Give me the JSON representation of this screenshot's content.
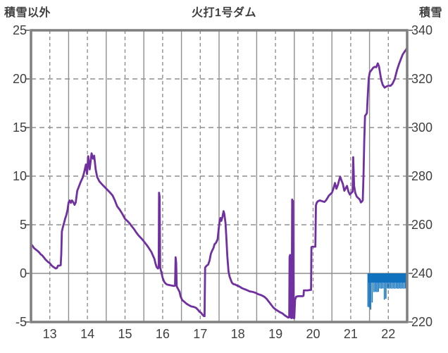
{
  "header": {
    "left_axis_title": "積雪以外",
    "title": "火打1号ダム",
    "right_axis_title": "積雪"
  },
  "colors": {
    "line": "#7030A0",
    "bar": "#1172BE",
    "grid": "#8f8f8f",
    "frame": "#7f7f7f",
    "text": "#404040"
  },
  "chart_data": {
    "type": "line",
    "title": "火打1号ダム",
    "x_axis": {
      "range": [
        12.5,
        22.5
      ],
      "tick_labels": [
        "13",
        "14",
        "15",
        "16",
        "17",
        "18",
        "19",
        "20",
        "21",
        "22"
      ],
      "tick_positions": [
        13,
        14,
        15,
        16,
        17,
        18,
        19,
        20,
        21,
        22
      ],
      "dashed_gridlines_at_labels": true,
      "solid_gridlines": [
        13.5,
        14.5,
        15.5,
        16.5,
        17.5,
        18.5,
        19.5,
        20.5,
        21.5
      ]
    },
    "left_axis": {
      "title": "積雪以外",
      "range": [
        -5,
        25
      ],
      "ticks": [
        25,
        20,
        15,
        10,
        5,
        0,
        -5
      ],
      "dashed_gridlines": [
        20,
        15,
        10,
        5
      ],
      "solid_zero_line": 0
    },
    "right_axis": {
      "title": "積雪",
      "range": [
        220,
        340
      ],
      "ticks": [
        340,
        320,
        300,
        280,
        260,
        240,
        220
      ]
    },
    "series": [
      {
        "name": "積雪以外",
        "type": "line",
        "axis": "left",
        "color": "#7030A0",
        "points": [
          [
            12.5,
            3.0
          ],
          [
            12.54,
            2.85
          ],
          [
            12.58,
            2.6
          ],
          [
            12.63,
            2.45
          ],
          [
            12.68,
            2.3
          ],
          [
            12.72,
            2.15
          ],
          [
            12.76,
            1.95
          ],
          [
            12.8,
            1.85
          ],
          [
            12.84,
            1.65
          ],
          [
            12.88,
            1.45
          ],
          [
            12.92,
            1.3
          ],
          [
            12.96,
            1.15
          ],
          [
            13.0,
            1.05
          ],
          [
            13.04,
            0.85
          ],
          [
            13.08,
            0.7
          ],
          [
            13.12,
            0.6
          ],
          [
            13.16,
            0.5
          ],
          [
            13.19,
            0.55
          ],
          [
            13.22,
            0.8
          ],
          [
            13.26,
            0.8
          ],
          [
            13.29,
            0.85
          ],
          [
            13.305,
            2.0
          ],
          [
            13.32,
            4.3
          ],
          [
            13.35,
            4.8
          ],
          [
            13.38,
            5.2
          ],
          [
            13.41,
            5.65
          ],
          [
            13.44,
            6.0
          ],
          [
            13.47,
            6.5
          ],
          [
            13.5,
            7.3
          ],
          [
            13.53,
            7.5
          ],
          [
            13.56,
            7.25
          ],
          [
            13.59,
            7.5
          ],
          [
            13.62,
            7.35
          ],
          [
            13.66,
            7.05
          ],
          [
            13.69,
            7.3
          ],
          [
            13.73,
            8.5
          ],
          [
            13.78,
            9.0
          ],
          [
            13.82,
            9.4
          ],
          [
            13.88,
            9.9
          ],
          [
            13.92,
            10.5
          ],
          [
            13.96,
            11.2
          ],
          [
            13.99,
            10.2
          ],
          [
            14.02,
            12.05
          ],
          [
            14.06,
            10.7
          ],
          [
            14.11,
            12.35
          ],
          [
            14.15,
            11.8
          ],
          [
            14.18,
            12.1
          ],
          [
            14.22,
            10.7
          ],
          [
            14.26,
            9.9
          ],
          [
            14.32,
            9.45
          ],
          [
            14.39,
            9.15
          ],
          [
            14.48,
            8.8
          ],
          [
            14.58,
            8.4
          ],
          [
            14.67,
            8.0
          ],
          [
            14.73,
            7.5
          ],
          [
            14.79,
            6.9
          ],
          [
            14.86,
            6.55
          ],
          [
            14.93,
            6.1
          ],
          [
            15.0,
            5.6
          ],
          [
            15.06,
            5.4
          ],
          [
            15.12,
            5.15
          ],
          [
            15.18,
            4.85
          ],
          [
            15.24,
            4.55
          ],
          [
            15.3,
            4.2
          ],
          [
            15.36,
            3.9
          ],
          [
            15.42,
            3.65
          ],
          [
            15.48,
            3.4
          ],
          [
            15.54,
            3.1
          ],
          [
            15.6,
            2.8
          ],
          [
            15.65,
            2.5
          ],
          [
            15.7,
            2.2
          ],
          [
            15.74,
            1.85
          ],
          [
            15.78,
            1.5
          ],
          [
            15.81,
            1.0
          ],
          [
            15.84,
            0.65
          ],
          [
            15.875,
            0.5
          ],
          [
            15.895,
            0.6
          ],
          [
            15.905,
            8.3
          ],
          [
            15.92,
            7.9
          ],
          [
            15.935,
            0.6
          ],
          [
            15.96,
            0.2
          ],
          [
            16.0,
            -0.45
          ],
          [
            16.04,
            -0.85
          ],
          [
            16.08,
            -1.05
          ],
          [
            16.12,
            -1.15
          ],
          [
            16.18,
            -1.2
          ],
          [
            16.24,
            -1.25
          ],
          [
            16.3,
            -1.3
          ],
          [
            16.33,
            -1.25
          ],
          [
            16.345,
            1.65
          ],
          [
            16.36,
            1.1
          ],
          [
            16.375,
            -1.35
          ],
          [
            16.41,
            -1.6
          ],
          [
            16.45,
            -1.9
          ],
          [
            16.48,
            -2.4
          ],
          [
            16.52,
            -2.75
          ],
          [
            16.57,
            -2.9
          ],
          [
            16.63,
            -3.1
          ],
          [
            16.69,
            -3.25
          ],
          [
            16.76,
            -3.4
          ],
          [
            16.83,
            -3.45
          ],
          [
            16.89,
            -3.55
          ],
          [
            16.94,
            -3.75
          ],
          [
            16.98,
            -3.95
          ],
          [
            17.02,
            -4.05
          ],
          [
            17.06,
            -4.25
          ],
          [
            17.1,
            -4.4
          ],
          [
            17.115,
            -4.4
          ],
          [
            17.13,
            0.6
          ],
          [
            17.17,
            0.8
          ],
          [
            17.21,
            0.9
          ],
          [
            17.25,
            1.35
          ],
          [
            17.28,
            2.0
          ],
          [
            17.31,
            2.3
          ],
          [
            17.35,
            2.6
          ],
          [
            17.38,
            3.0
          ],
          [
            17.42,
            3.15
          ],
          [
            17.46,
            3.5
          ],
          [
            17.49,
            4.6
          ],
          [
            17.52,
            5.5
          ],
          [
            17.54,
            5.7
          ],
          [
            17.56,
            5.4
          ],
          [
            17.59,
            5.8
          ],
          [
            17.62,
            6.4
          ],
          [
            17.64,
            6.1
          ],
          [
            17.67,
            5.2
          ],
          [
            17.69,
            4.0
          ],
          [
            17.72,
            1.8
          ],
          [
            17.75,
            0.2
          ],
          [
            17.78,
            -0.35
          ],
          [
            17.81,
            -0.65
          ],
          [
            17.84,
            -0.95
          ],
          [
            17.88,
            -1.1
          ],
          [
            17.93,
            -1.15
          ],
          [
            17.98,
            -1.25
          ],
          [
            18.04,
            -1.35
          ],
          [
            18.1,
            -1.5
          ],
          [
            18.16,
            -1.6
          ],
          [
            18.23,
            -1.7
          ],
          [
            18.31,
            -1.85
          ],
          [
            18.39,
            -1.9
          ],
          [
            18.47,
            -2.0
          ],
          [
            18.55,
            -2.15
          ],
          [
            18.63,
            -2.25
          ],
          [
            18.7,
            -2.4
          ],
          [
            18.76,
            -2.6
          ],
          [
            18.82,
            -2.9
          ],
          [
            18.88,
            -3.2
          ],
          [
            18.94,
            -3.5
          ],
          [
            19.0,
            -3.7
          ],
          [
            19.06,
            -3.85
          ],
          [
            19.12,
            -4.0
          ],
          [
            19.18,
            -4.1
          ],
          [
            19.24,
            -4.3
          ],
          [
            19.3,
            -4.45
          ],
          [
            19.34,
            -4.55
          ],
          [
            19.365,
            -4.5
          ],
          [
            19.375,
            1.7
          ],
          [
            19.39,
            1.9
          ],
          [
            19.405,
            -4.55
          ],
          [
            19.43,
            -4.6
          ],
          [
            19.443,
            7.6
          ],
          [
            19.455,
            -4.0
          ],
          [
            19.467,
            7.45
          ],
          [
            19.483,
            -4.6
          ],
          [
            19.5,
            -4.6
          ],
          [
            19.52,
            -2.7
          ],
          [
            19.55,
            -2.4
          ],
          [
            19.6,
            -2.35
          ],
          [
            19.66,
            -2.35
          ],
          [
            19.72,
            -2.35
          ],
          [
            19.745,
            -2.3
          ],
          [
            19.755,
            -1.75
          ],
          [
            19.8,
            -1.75
          ],
          [
            19.86,
            -1.75
          ],
          [
            19.92,
            -1.7
          ],
          [
            19.945,
            -1.7
          ],
          [
            19.955,
            2.7
          ],
          [
            19.99,
            2.75
          ],
          [
            20.03,
            2.75
          ],
          [
            20.06,
            2.75
          ],
          [
            20.075,
            7.0
          ],
          [
            20.1,
            7.3
          ],
          [
            20.14,
            7.45
          ],
          [
            20.18,
            7.5
          ],
          [
            20.22,
            7.45
          ],
          [
            20.26,
            7.4
          ],
          [
            20.3,
            7.35
          ],
          [
            20.34,
            7.5
          ],
          [
            20.38,
            7.75
          ],
          [
            20.42,
            8.0
          ],
          [
            20.46,
            8.15
          ],
          [
            20.5,
            8.3
          ],
          [
            20.54,
            8.7
          ],
          [
            20.58,
            9.3
          ],
          [
            20.62,
            8.7
          ],
          [
            20.66,
            9.1
          ],
          [
            20.7,
            9.7
          ],
          [
            20.72,
            9.95
          ],
          [
            20.75,
            9.6
          ],
          [
            20.79,
            9.2
          ],
          [
            20.83,
            8.5
          ],
          [
            20.87,
            8.8
          ],
          [
            20.9,
            9.0
          ],
          [
            20.94,
            8.4
          ],
          [
            20.98,
            8.1
          ],
          [
            21.02,
            8.3
          ],
          [
            21.05,
            8.4
          ],
          [
            21.065,
            11.95
          ],
          [
            21.09,
            9.0
          ],
          [
            21.12,
            8.3
          ],
          [
            21.16,
            7.9
          ],
          [
            21.2,
            7.75
          ],
          [
            21.24,
            7.6
          ],
          [
            21.27,
            7.3
          ],
          [
            21.3,
            7.4
          ],
          [
            21.32,
            7.5
          ],
          [
            21.34,
            10.2
          ],
          [
            21.36,
            13.6
          ],
          [
            21.38,
            16.2
          ],
          [
            21.41,
            16.35
          ],
          [
            21.43,
            16.5
          ],
          [
            21.45,
            18.0
          ],
          [
            21.48,
            20.1
          ],
          [
            21.51,
            20.7
          ],
          [
            21.55,
            20.9
          ],
          [
            21.6,
            21.15
          ],
          [
            21.64,
            21.25
          ],
          [
            21.68,
            21.2
          ],
          [
            21.72,
            21.6
          ],
          [
            21.75,
            21.3
          ],
          [
            21.78,
            20.6
          ],
          [
            21.81,
            19.9
          ],
          [
            21.85,
            19.4
          ],
          [
            21.9,
            19.1
          ],
          [
            21.94,
            19.2
          ],
          [
            22.0,
            19.3
          ],
          [
            22.06,
            19.3
          ],
          [
            22.11,
            19.5
          ],
          [
            22.17,
            20.0
          ],
          [
            22.23,
            20.9
          ],
          [
            22.28,
            21.5
          ],
          [
            22.33,
            22.0
          ],
          [
            22.38,
            22.5
          ],
          [
            22.43,
            22.8
          ],
          [
            22.47,
            23.0
          ],
          [
            22.5,
            23.2
          ]
        ]
      },
      {
        "name": "積雪",
        "type": "hanging-bar",
        "axis": "right",
        "color": "#1172BE",
        "baseline": 240,
        "band": {
          "x_from": 21.46,
          "x_to": 22.5,
          "value": 236.2
        },
        "bar_width_years": 0.03,
        "bars": [
          [
            21.46,
            226.2
          ],
          [
            21.495,
            226.0
          ],
          [
            21.53,
            225.1
          ],
          [
            21.57,
            228.0
          ],
          [
            21.615,
            232.3
          ],
          [
            21.655,
            232.4
          ],
          [
            21.695,
            232.3
          ],
          [
            21.735,
            232.4
          ],
          [
            21.775,
            233.8
          ],
          [
            21.815,
            233.7
          ],
          [
            21.855,
            233.8
          ],
          [
            21.895,
            229.2
          ],
          [
            21.935,
            229.6
          ],
          [
            21.975,
            233.8
          ],
          [
            22.015,
            233.7
          ],
          [
            22.055,
            233.8
          ],
          [
            22.095,
            233.7
          ],
          [
            22.135,
            233.8
          ],
          [
            22.175,
            233.7
          ],
          [
            22.215,
            233.8
          ],
          [
            22.255,
            233.7
          ],
          [
            22.295,
            233.8
          ],
          [
            22.335,
            233.7
          ],
          [
            22.375,
            233.8
          ],
          [
            22.415,
            233.7
          ],
          [
            22.455,
            233.8
          ],
          [
            22.49,
            233.8
          ]
        ]
      }
    ]
  }
}
